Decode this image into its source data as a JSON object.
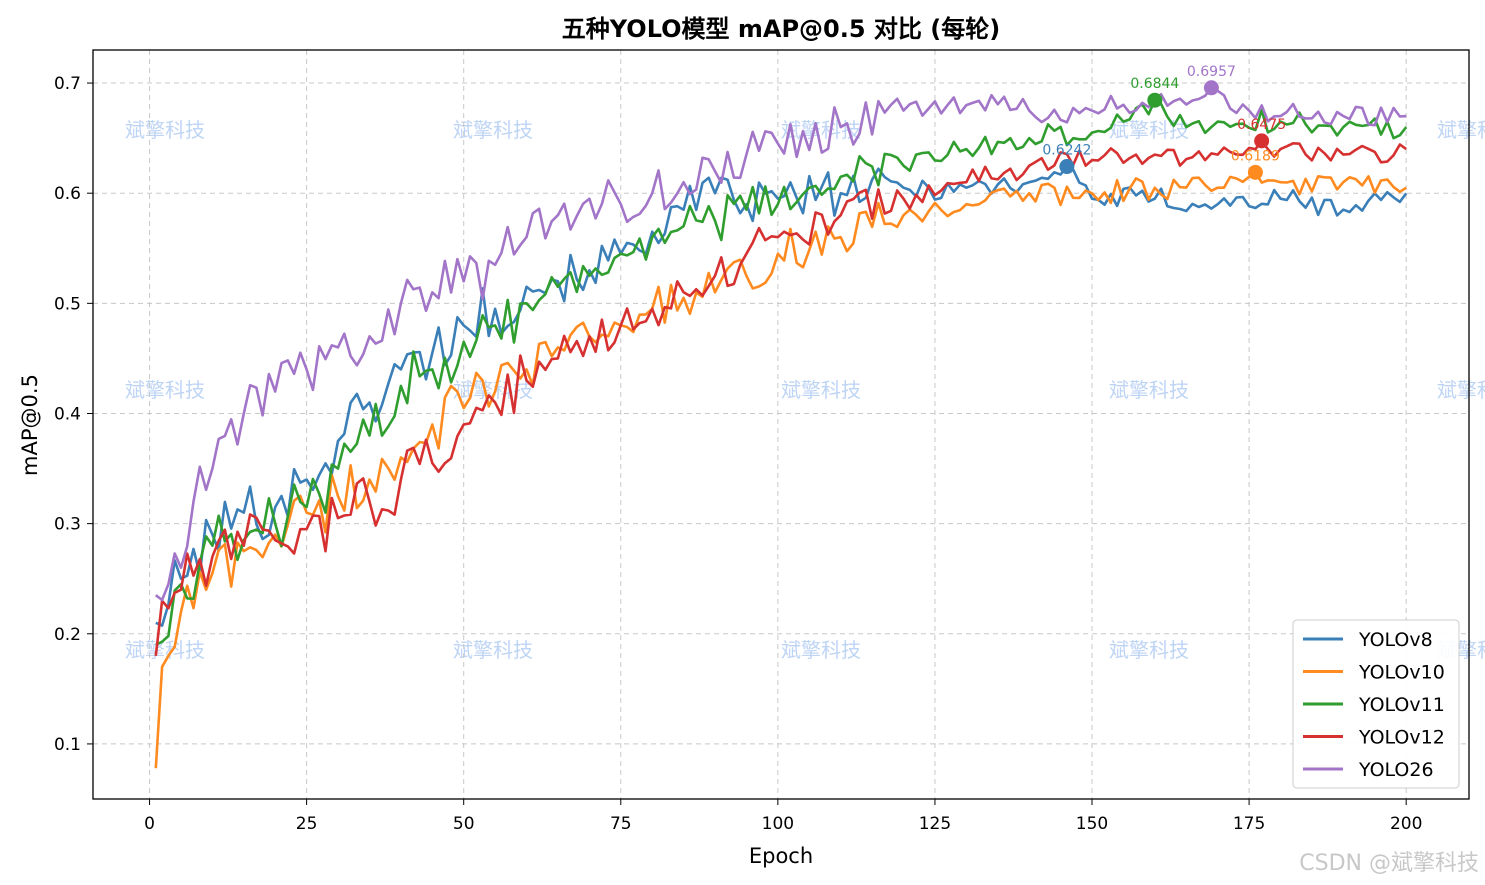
{
  "footer": {
    "credit": "CSDN @斌擎科技"
  },
  "watermark": {
    "text": "斌擎科技"
  },
  "chart_data": {
    "type": "line",
    "title": "五种YOLO模型 mAP@0.5 对比 (每轮)",
    "xlabel": "Epoch",
    "ylabel": "mAP@0.5",
    "xlim": [
      -9,
      210
    ],
    "ylim": [
      0.05,
      0.73
    ],
    "xticks": [
      0,
      25,
      50,
      75,
      100,
      125,
      150,
      175,
      200
    ],
    "yticks": [
      0.1,
      0.2,
      0.3,
      0.4,
      0.5,
      0.6,
      0.7
    ],
    "grid": true,
    "legend_position": "bottom-right",
    "series": [
      {
        "name": "YOLOv8",
        "color": "#3a7fb8",
        "best": {
          "x": 146,
          "y": 0.6242,
          "label": "0.6242"
        },
        "anchors": [
          [
            1,
            0.21
          ],
          [
            5,
            0.25
          ],
          [
            10,
            0.29
          ],
          [
            15,
            0.31
          ],
          [
            20,
            0.315
          ],
          [
            25,
            0.34
          ],
          [
            30,
            0.375
          ],
          [
            35,
            0.41
          ],
          [
            40,
            0.44
          ],
          [
            45,
            0.455
          ],
          [
            50,
            0.48
          ],
          [
            55,
            0.495
          ],
          [
            60,
            0.515
          ],
          [
            65,
            0.52
          ],
          [
            70,
            0.53
          ],
          [
            75,
            0.545
          ],
          [
            80,
            0.565
          ],
          [
            85,
            0.585
          ],
          [
            90,
            0.6
          ],
          [
            95,
            0.59
          ],
          [
            100,
            0.595
          ],
          [
            110,
            0.6
          ],
          [
            120,
            0.605
          ],
          [
            130,
            0.605
          ],
          [
            140,
            0.61
          ],
          [
            146,
            0.6242
          ],
          [
            150,
            0.595
          ],
          [
            160,
            0.595
          ],
          [
            170,
            0.59
          ],
          [
            180,
            0.595
          ],
          [
            190,
            0.585
          ],
          [
            200,
            0.6
          ]
        ]
      },
      {
        "name": "YOLOv10",
        "color": "#ff8a1f",
        "best": {
          "x": 176,
          "y": 0.6189,
          "label": "0.6189"
        },
        "anchors": [
          [
            1,
            0.078
          ],
          [
            2,
            0.17
          ],
          [
            3,
            0.18
          ],
          [
            5,
            0.22
          ],
          [
            10,
            0.255
          ],
          [
            15,
            0.275
          ],
          [
            20,
            0.29
          ],
          [
            25,
            0.31
          ],
          [
            30,
            0.325
          ],
          [
            35,
            0.34
          ],
          [
            40,
            0.36
          ],
          [
            45,
            0.39
          ],
          [
            50,
            0.405
          ],
          [
            55,
            0.42
          ],
          [
            60,
            0.44
          ],
          [
            65,
            0.46
          ],
          [
            70,
            0.47
          ],
          [
            75,
            0.48
          ],
          [
            80,
            0.495
          ],
          [
            85,
            0.505
          ],
          [
            90,
            0.51
          ],
          [
            95,
            0.525
          ],
          [
            100,
            0.545
          ],
          [
            110,
            0.56
          ],
          [
            120,
            0.58
          ],
          [
            130,
            0.59
          ],
          [
            140,
            0.6
          ],
          [
            150,
            0.6
          ],
          [
            160,
            0.605
          ],
          [
            170,
            0.605
          ],
          [
            176,
            0.6189
          ],
          [
            180,
            0.61
          ],
          [
            190,
            0.61
          ],
          [
            200,
            0.605
          ]
        ]
      },
      {
        "name": "YOLOv11",
        "color": "#2f9e2f",
        "best": {
          "x": 160,
          "y": 0.6844,
          "label": "0.6844"
        },
        "anchors": [
          [
            1,
            0.19
          ],
          [
            5,
            0.245
          ],
          [
            10,
            0.28
          ],
          [
            15,
            0.285
          ],
          [
            20,
            0.3
          ],
          [
            25,
            0.315
          ],
          [
            30,
            0.35
          ],
          [
            35,
            0.38
          ],
          [
            40,
            0.425
          ],
          [
            45,
            0.44
          ],
          [
            50,
            0.465
          ],
          [
            55,
            0.48
          ],
          [
            60,
            0.5
          ],
          [
            65,
            0.515
          ],
          [
            70,
            0.525
          ],
          [
            75,
            0.545
          ],
          [
            80,
            0.56
          ],
          [
            85,
            0.57
          ],
          [
            90,
            0.575
          ],
          [
            95,
            0.585
          ],
          [
            100,
            0.59
          ],
          [
            105,
            0.605
          ],
          [
            110,
            0.615
          ],
          [
            120,
            0.625
          ],
          [
            130,
            0.64
          ],
          [
            140,
            0.65
          ],
          [
            150,
            0.655
          ],
          [
            155,
            0.665
          ],
          [
            160,
            0.6844
          ],
          [
            165,
            0.66
          ],
          [
            170,
            0.665
          ],
          [
            180,
            0.665
          ],
          [
            190,
            0.66
          ],
          [
            200,
            0.66
          ]
        ]
      },
      {
        "name": "YOLOv12",
        "color": "#d63030",
        "best": {
          "x": 177,
          "y": 0.6475,
          "label": "0.6475"
        },
        "anchors": [
          [
            1,
            0.18
          ],
          [
            2,
            0.23
          ],
          [
            5,
            0.24
          ],
          [
            10,
            0.27
          ],
          [
            15,
            0.28
          ],
          [
            20,
            0.285
          ],
          [
            25,
            0.295
          ],
          [
            30,
            0.305
          ],
          [
            35,
            0.32
          ],
          [
            40,
            0.34
          ],
          [
            45,
            0.355
          ],
          [
            50,
            0.39
          ],
          [
            55,
            0.41
          ],
          [
            60,
            0.43
          ],
          [
            65,
            0.45
          ],
          [
            70,
            0.47
          ],
          [
            75,
            0.48
          ],
          [
            80,
            0.495
          ],
          [
            85,
            0.51
          ],
          [
            90,
            0.525
          ],
          [
            95,
            0.545
          ],
          [
            100,
            0.56
          ],
          [
            110,
            0.58
          ],
          [
            120,
            0.595
          ],
          [
            130,
            0.61
          ],
          [
            140,
            0.625
          ],
          [
            150,
            0.63
          ],
          [
            160,
            0.635
          ],
          [
            170,
            0.635
          ],
          [
            177,
            0.6475
          ],
          [
            180,
            0.64
          ],
          [
            190,
            0.635
          ],
          [
            200,
            0.64
          ]
        ]
      },
      {
        "name": "YOLO26",
        "color": "#a275c8",
        "best": {
          "x": 169,
          "y": 0.6957,
          "label": "0.6957"
        },
        "anchors": [
          [
            1,
            0.235
          ],
          [
            3,
            0.245
          ],
          [
            5,
            0.26
          ],
          [
            7,
            0.32
          ],
          [
            10,
            0.35
          ],
          [
            15,
            0.4
          ],
          [
            20,
            0.42
          ],
          [
            25,
            0.44
          ],
          [
            30,
            0.46
          ],
          [
            35,
            0.47
          ],
          [
            40,
            0.5
          ],
          [
            45,
            0.51
          ],
          [
            50,
            0.52
          ],
          [
            55,
            0.535
          ],
          [
            60,
            0.56
          ],
          [
            65,
            0.58
          ],
          [
            70,
            0.595
          ],
          [
            75,
            0.59
          ],
          [
            80,
            0.6
          ],
          [
            85,
            0.61
          ],
          [
            90,
            0.62
          ],
          [
            95,
            0.635
          ],
          [
            100,
            0.645
          ],
          [
            110,
            0.66
          ],
          [
            120,
            0.675
          ],
          [
            130,
            0.68
          ],
          [
            140,
            0.675
          ],
          [
            150,
            0.675
          ],
          [
            160,
            0.685
          ],
          [
            169,
            0.6957
          ],
          [
            175,
            0.675
          ],
          [
            180,
            0.67
          ],
          [
            190,
            0.67
          ],
          [
            200,
            0.67
          ]
        ]
      }
    ]
  }
}
